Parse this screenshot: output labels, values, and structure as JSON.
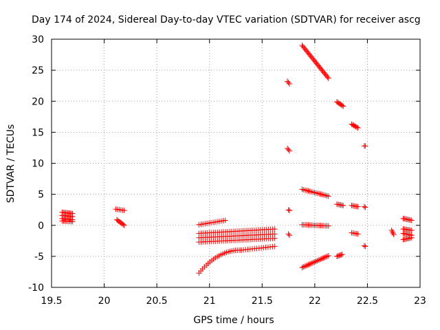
{
  "chart_data": {
    "type": "scatter",
    "title": "Day 174 of 2024, Sidereal Day-to-day VTEC variation (SDTVAR) for receiver ascg",
    "xlabel": "GPS time / hours",
    "ylabel": "SDTVAR / TECUs",
    "xlim": [
      19.5,
      23
    ],
    "ylim": [
      -10,
      30
    ],
    "xticks": [
      "19.5",
      "20",
      "20.5",
      "21",
      "21.5",
      "22",
      "22.5",
      "23"
    ],
    "yticks": [
      "-10",
      "-5",
      "0",
      "5",
      "10",
      "15",
      "20",
      "25",
      "30"
    ],
    "grid": true,
    "marker": "plus",
    "series_color": "#ff0000",
    "segments": [
      {
        "x0": 19.6,
        "x1": 19.7,
        "y0": 2.1,
        "y1": 1.9,
        "n": 10
      },
      {
        "x0": 19.6,
        "x1": 19.7,
        "y0": 1.6,
        "y1": 1.4,
        "n": 10
      },
      {
        "x0": 19.6,
        "x1": 19.7,
        "y0": 1.1,
        "y1": 0.9,
        "n": 10
      },
      {
        "x0": 19.6,
        "x1": 19.7,
        "y0": 0.7,
        "y1": 0.6,
        "n": 8
      },
      {
        "x0": 20.11,
        "x1": 20.19,
        "y0": 2.6,
        "y1": 2.4,
        "n": 6
      },
      {
        "x0": 20.12,
        "x1": 20.19,
        "y0": 0.9,
        "y1": 0.0,
        "n": 8
      },
      {
        "x0": 20.9,
        "x1": 21.15,
        "y0": 0.1,
        "y1": 0.8,
        "n": 14
      },
      {
        "x0": 20.9,
        "x1": 21.62,
        "y0": -1.3,
        "y1": -0.6,
        "n": 38
      },
      {
        "x0": 20.9,
        "x1": 21.62,
        "y0": -2.0,
        "y1": -1.4,
        "n": 38
      },
      {
        "x0": 20.9,
        "x1": 21.62,
        "y0": -2.7,
        "y1": -2.1,
        "n": 38
      },
      {
        "x0": 20.9,
        "x1": 21.3,
        "y0": -7.7,
        "y1": -4.0,
        "n": 24,
        "curve": 2.2
      },
      {
        "x0": 21.3,
        "x1": 21.62,
        "y0": -4.0,
        "y1": -3.4,
        "n": 16
      },
      {
        "x0": 21.74,
        "x1": 21.76,
        "y0": 23.2,
        "y1": 22.8,
        "n": 3
      },
      {
        "x0": 21.74,
        "x1": 21.76,
        "y0": 12.4,
        "y1": 12.0,
        "n": 3
      },
      {
        "x0": 21.75,
        "x1": 21.76,
        "y0": 2.5,
        "y1": 2.4,
        "n": 2
      },
      {
        "x0": 21.75,
        "x1": 21.76,
        "y0": -1.4,
        "y1": -1.6,
        "n": 2
      },
      {
        "x0": 21.88,
        "x1": 22.13,
        "y0": 29.0,
        "y1": 23.7,
        "n": 30
      },
      {
        "x0": 21.88,
        "x1": 22.13,
        "y0": 5.8,
        "y1": 4.7,
        "n": 18
      },
      {
        "x0": 21.88,
        "x1": 22.13,
        "y0": 0.1,
        "y1": -0.1,
        "n": 18
      },
      {
        "x0": 21.88,
        "x1": 22.13,
        "y0": -6.8,
        "y1": -4.9,
        "n": 22
      },
      {
        "x0": 22.21,
        "x1": 22.27,
        "y0": 19.9,
        "y1": 19.2,
        "n": 7
      },
      {
        "x0": 22.21,
        "x1": 22.27,
        "y0": 3.4,
        "y1": 3.2,
        "n": 6
      },
      {
        "x0": 22.21,
        "x1": 22.26,
        "y0": -5.0,
        "y1": -4.7,
        "n": 6
      },
      {
        "x0": 22.35,
        "x1": 22.41,
        "y0": 16.3,
        "y1": 15.7,
        "n": 7
      },
      {
        "x0": 22.35,
        "x1": 22.41,
        "y0": 3.2,
        "y1": 3.0,
        "n": 6
      },
      {
        "x0": 22.35,
        "x1": 22.41,
        "y0": -1.2,
        "y1": -1.4,
        "n": 5
      },
      {
        "x0": 22.47,
        "x1": 22.48,
        "y0": 12.8,
        "y1": 12.8,
        "n": 2
      },
      {
        "x0": 22.47,
        "x1": 22.48,
        "y0": 3.0,
        "y1": 2.9,
        "n": 2
      },
      {
        "x0": 22.47,
        "x1": 22.48,
        "y0": -3.3,
        "y1": -3.4,
        "n": 2
      },
      {
        "x0": 22.73,
        "x1": 22.75,
        "y0": -0.8,
        "y1": -1.5,
        "n": 4
      },
      {
        "x0": 22.84,
        "x1": 22.92,
        "y0": 1.1,
        "y1": 0.8,
        "n": 8
      },
      {
        "x0": 22.84,
        "x1": 22.92,
        "y0": -0.6,
        "y1": -0.8,
        "n": 8
      },
      {
        "x0": 22.84,
        "x1": 22.92,
        "y0": -1.3,
        "y1": -1.6,
        "n": 8
      },
      {
        "x0": 22.84,
        "x1": 22.92,
        "y0": -2.3,
        "y1": -2.0,
        "n": 8
      }
    ]
  }
}
